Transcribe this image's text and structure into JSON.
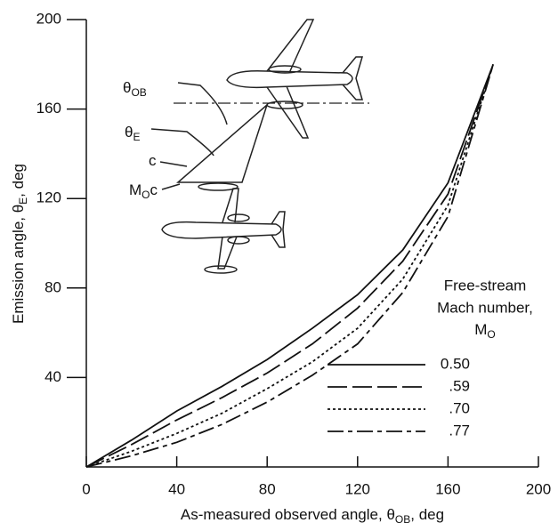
{
  "chart_data": {
    "type": "line",
    "x_label": {
      "text": "As-measured observed angle, θ",
      "subscript": "OB",
      "suffix": ", deg"
    },
    "y_label": {
      "text": "Emission angle, θ",
      "subscript": "E",
      "suffix": ", deg"
    },
    "x": [
      0,
      20,
      40,
      60,
      80,
      100,
      120,
      140,
      160,
      180
    ],
    "series": [
      {
        "name": "0.50",
        "color": "#111111",
        "dash": "solid",
        "values": [
          0,
          12,
          25,
          36,
          48,
          62,
          77,
          97,
          127,
          180
        ]
      },
      {
        "name": ".59",
        "color": "#111111",
        "dash": "long-dash",
        "values": [
          0,
          10,
          21,
          31,
          42,
          55,
          71,
          92,
          122,
          180
        ]
      },
      {
        "name": ".70",
        "color": "#111111",
        "dash": "dot",
        "values": [
          0,
          7,
          15,
          24,
          35,
          47,
          62,
          84,
          117,
          180
        ]
      },
      {
        "name": ".77",
        "color": "#111111",
        "dash": "dash-dot",
        "values": [
          0,
          5,
          11,
          19,
          29,
          41,
          55,
          78,
          112,
          180
        ]
      }
    ],
    "xlim": [
      0,
      200
    ],
    "xticks": [
      0,
      40,
      80,
      120,
      160,
      200
    ],
    "ylim": [
      0,
      200
    ],
    "yticks": [
      40,
      80,
      120,
      160,
      200
    ],
    "legend_title": {
      "lines": [
        "Free-stream",
        "Mach number,"
      ],
      "symbol": "M",
      "subscript": "O"
    },
    "legend_position": "lower right",
    "annotations": [
      {
        "text": "θ",
        "subscript": "OB"
      },
      {
        "text": "θ",
        "subscript": "E"
      },
      {
        "text": "c",
        "subscript": ""
      },
      {
        "text": "M",
        "subscript": "O",
        "suffix": "c"
      }
    ]
  }
}
